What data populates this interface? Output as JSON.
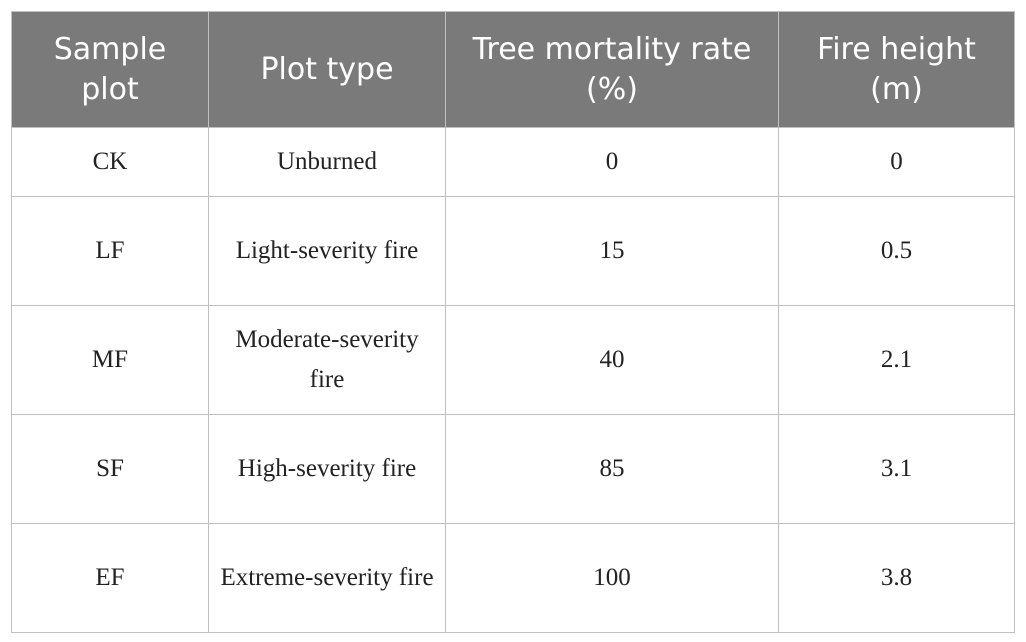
{
  "table": {
    "headers": [
      "Sample plot",
      "Plot type",
      "Tree mortality rate (%)",
      "Fire height (m)"
    ],
    "rows": [
      [
        "CK",
        "Unburned",
        "0",
        "0"
      ],
      [
        "LF",
        "Light-severity fire",
        "15",
        "0.5"
      ],
      [
        "MF",
        "Moderate-severity fire",
        "40",
        "2.1"
      ],
      [
        "SF",
        "High-severity fire",
        "85",
        "3.1"
      ],
      [
        "EF",
        "Extreme-severity fire",
        "100",
        "3.8"
      ]
    ]
  },
  "colors": {
    "header_bg": "#7a7a7a",
    "header_text": "#ffffff",
    "border": "#c0c0c0"
  }
}
